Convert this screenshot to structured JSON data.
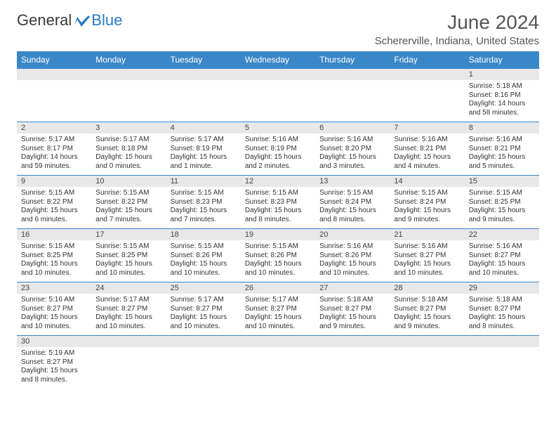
{
  "logo": {
    "text_a": "General",
    "text_b": "Blue"
  },
  "title": "June 2024",
  "location": "Schererville, Indiana, United States",
  "colors": {
    "header_bg": "#3a87c7",
    "header_fg": "#ffffff",
    "daynum_bg": "#e8e8e8",
    "border": "#3a87c7",
    "logo_blue": "#2a7bc0",
    "text_gray": "#555"
  },
  "weekdays": [
    "Sunday",
    "Monday",
    "Tuesday",
    "Wednesday",
    "Thursday",
    "Friday",
    "Saturday"
  ],
  "weeks": [
    {
      "days": [
        {
          "n": "",
          "sr": "",
          "ss": "",
          "dl": ""
        },
        {
          "n": "",
          "sr": "",
          "ss": "",
          "dl": ""
        },
        {
          "n": "",
          "sr": "",
          "ss": "",
          "dl": ""
        },
        {
          "n": "",
          "sr": "",
          "ss": "",
          "dl": ""
        },
        {
          "n": "",
          "sr": "",
          "ss": "",
          "dl": ""
        },
        {
          "n": "",
          "sr": "",
          "ss": "",
          "dl": ""
        },
        {
          "n": "1",
          "sr": "Sunrise: 5:18 AM",
          "ss": "Sunset: 8:16 PM",
          "dl": "Daylight: 14 hours and 58 minutes."
        }
      ]
    },
    {
      "days": [
        {
          "n": "2",
          "sr": "Sunrise: 5:17 AM",
          "ss": "Sunset: 8:17 PM",
          "dl": "Daylight: 14 hours and 59 minutes."
        },
        {
          "n": "3",
          "sr": "Sunrise: 5:17 AM",
          "ss": "Sunset: 8:18 PM",
          "dl": "Daylight: 15 hours and 0 minutes."
        },
        {
          "n": "4",
          "sr": "Sunrise: 5:17 AM",
          "ss": "Sunset: 8:19 PM",
          "dl": "Daylight: 15 hours and 1 minute."
        },
        {
          "n": "5",
          "sr": "Sunrise: 5:16 AM",
          "ss": "Sunset: 8:19 PM",
          "dl": "Daylight: 15 hours and 2 minutes."
        },
        {
          "n": "6",
          "sr": "Sunrise: 5:16 AM",
          "ss": "Sunset: 8:20 PM",
          "dl": "Daylight: 15 hours and 3 minutes."
        },
        {
          "n": "7",
          "sr": "Sunrise: 5:16 AM",
          "ss": "Sunset: 8:21 PM",
          "dl": "Daylight: 15 hours and 4 minutes."
        },
        {
          "n": "8",
          "sr": "Sunrise: 5:16 AM",
          "ss": "Sunset: 8:21 PM",
          "dl": "Daylight: 15 hours and 5 minutes."
        }
      ]
    },
    {
      "days": [
        {
          "n": "9",
          "sr": "Sunrise: 5:15 AM",
          "ss": "Sunset: 8:22 PM",
          "dl": "Daylight: 15 hours and 6 minutes."
        },
        {
          "n": "10",
          "sr": "Sunrise: 5:15 AM",
          "ss": "Sunset: 8:22 PM",
          "dl": "Daylight: 15 hours and 7 minutes."
        },
        {
          "n": "11",
          "sr": "Sunrise: 5:15 AM",
          "ss": "Sunset: 8:23 PM",
          "dl": "Daylight: 15 hours and 7 minutes."
        },
        {
          "n": "12",
          "sr": "Sunrise: 5:15 AM",
          "ss": "Sunset: 8:23 PM",
          "dl": "Daylight: 15 hours and 8 minutes."
        },
        {
          "n": "13",
          "sr": "Sunrise: 5:15 AM",
          "ss": "Sunset: 8:24 PM",
          "dl": "Daylight: 15 hours and 8 minutes."
        },
        {
          "n": "14",
          "sr": "Sunrise: 5:15 AM",
          "ss": "Sunset: 8:24 PM",
          "dl": "Daylight: 15 hours and 9 minutes."
        },
        {
          "n": "15",
          "sr": "Sunrise: 5:15 AM",
          "ss": "Sunset: 8:25 PM",
          "dl": "Daylight: 15 hours and 9 minutes."
        }
      ]
    },
    {
      "days": [
        {
          "n": "16",
          "sr": "Sunrise: 5:15 AM",
          "ss": "Sunset: 8:25 PM",
          "dl": "Daylight: 15 hours and 10 minutes."
        },
        {
          "n": "17",
          "sr": "Sunrise: 5:15 AM",
          "ss": "Sunset: 8:25 PM",
          "dl": "Daylight: 15 hours and 10 minutes."
        },
        {
          "n": "18",
          "sr": "Sunrise: 5:15 AM",
          "ss": "Sunset: 8:26 PM",
          "dl": "Daylight: 15 hours and 10 minutes."
        },
        {
          "n": "19",
          "sr": "Sunrise: 5:15 AM",
          "ss": "Sunset: 8:26 PM",
          "dl": "Daylight: 15 hours and 10 minutes."
        },
        {
          "n": "20",
          "sr": "Sunrise: 5:16 AM",
          "ss": "Sunset: 8:26 PM",
          "dl": "Daylight: 15 hours and 10 minutes."
        },
        {
          "n": "21",
          "sr": "Sunrise: 5:16 AM",
          "ss": "Sunset: 8:27 PM",
          "dl": "Daylight: 15 hours and 10 minutes."
        },
        {
          "n": "22",
          "sr": "Sunrise: 5:16 AM",
          "ss": "Sunset: 8:27 PM",
          "dl": "Daylight: 15 hours and 10 minutes."
        }
      ]
    },
    {
      "days": [
        {
          "n": "23",
          "sr": "Sunrise: 5:16 AM",
          "ss": "Sunset: 8:27 PM",
          "dl": "Daylight: 15 hours and 10 minutes."
        },
        {
          "n": "24",
          "sr": "Sunrise: 5:17 AM",
          "ss": "Sunset: 8:27 PM",
          "dl": "Daylight: 15 hours and 10 minutes."
        },
        {
          "n": "25",
          "sr": "Sunrise: 5:17 AM",
          "ss": "Sunset: 8:27 PM",
          "dl": "Daylight: 15 hours and 10 minutes."
        },
        {
          "n": "26",
          "sr": "Sunrise: 5:17 AM",
          "ss": "Sunset: 8:27 PM",
          "dl": "Daylight: 15 hours and 10 minutes."
        },
        {
          "n": "27",
          "sr": "Sunrise: 5:18 AM",
          "ss": "Sunset: 8:27 PM",
          "dl": "Daylight: 15 hours and 9 minutes."
        },
        {
          "n": "28",
          "sr": "Sunrise: 5:18 AM",
          "ss": "Sunset: 8:27 PM",
          "dl": "Daylight: 15 hours and 9 minutes."
        },
        {
          "n": "29",
          "sr": "Sunrise: 5:18 AM",
          "ss": "Sunset: 8:27 PM",
          "dl": "Daylight: 15 hours and 8 minutes."
        }
      ]
    },
    {
      "days": [
        {
          "n": "30",
          "sr": "Sunrise: 5:19 AM",
          "ss": "Sunset: 8:27 PM",
          "dl": "Daylight: 15 hours and 8 minutes."
        },
        {
          "n": "",
          "sr": "",
          "ss": "",
          "dl": ""
        },
        {
          "n": "",
          "sr": "",
          "ss": "",
          "dl": ""
        },
        {
          "n": "",
          "sr": "",
          "ss": "",
          "dl": ""
        },
        {
          "n": "",
          "sr": "",
          "ss": "",
          "dl": ""
        },
        {
          "n": "",
          "sr": "",
          "ss": "",
          "dl": ""
        },
        {
          "n": "",
          "sr": "",
          "ss": "",
          "dl": ""
        }
      ]
    }
  ]
}
